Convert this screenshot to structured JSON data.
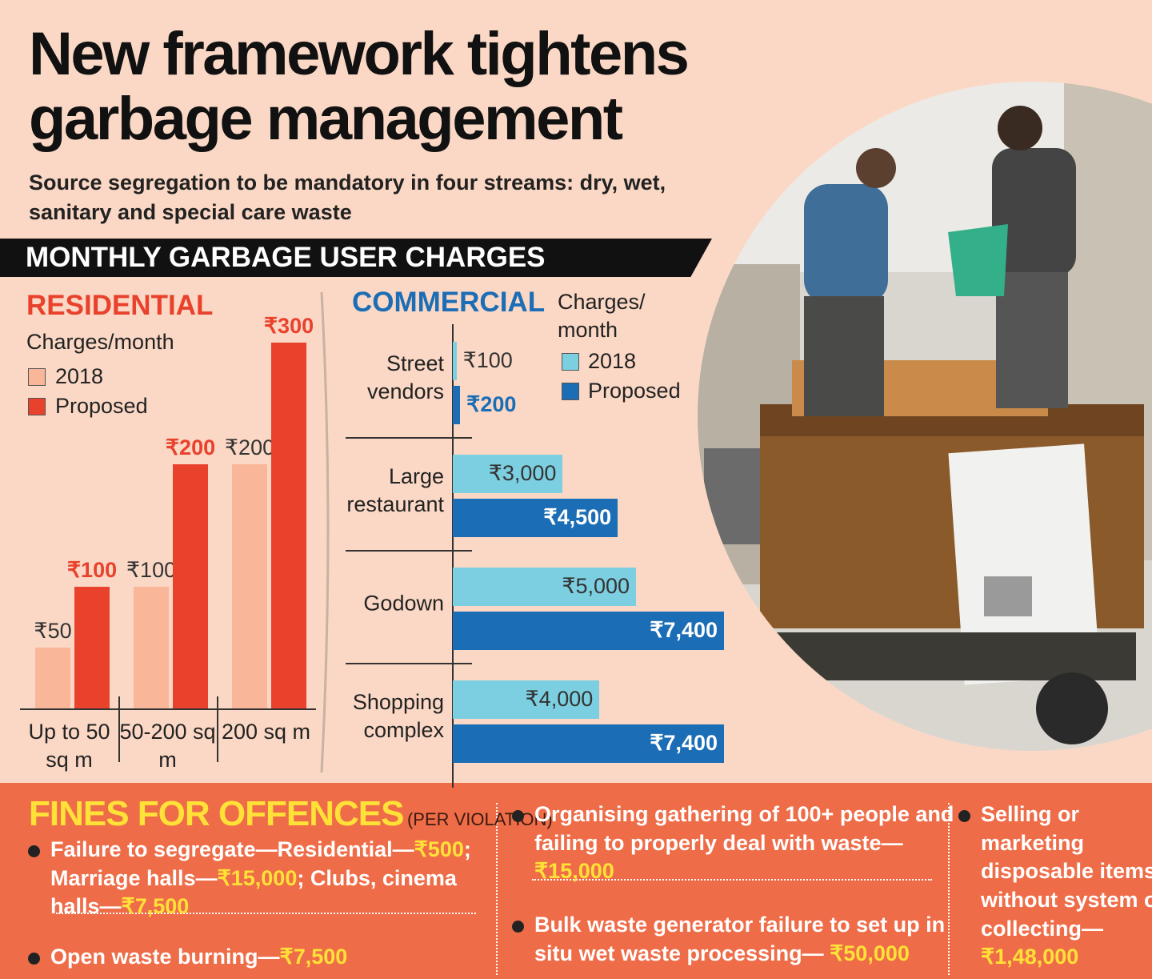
{
  "header": {
    "title": "New framework tightens garbage management",
    "subtitle": "Source segregation to be mandatory in four streams: dry, wet, sanitary and special care waste",
    "section": "MONTHLY GARBAGE USER CHARGES"
  },
  "chart_data": [
    {
      "type": "bar",
      "title": "RESIDENTIAL",
      "subtitle": "Charges/month",
      "categories": [
        "Up to 50 sq m",
        "50-200 sq m",
        "200 sq m"
      ],
      "series": [
        {
          "name": "2018",
          "color": "#f9b699",
          "values": [
            50,
            100,
            200
          ],
          "value_labels": [
            "₹50",
            "₹100",
            "₹200"
          ]
        },
        {
          "name": "Proposed",
          "color": "#e8412c",
          "values": [
            100,
            200,
            300
          ],
          "value_labels": [
            "₹100",
            "₹200",
            "₹300"
          ]
        }
      ]
    },
    {
      "type": "barh",
      "title": "COMMERCIAL",
      "subtitle": "Charges/ month",
      "categories": [
        "Street vendors",
        "Large restaurant",
        "Godown",
        "Shopping complex"
      ],
      "series": [
        {
          "name": "2018",
          "color": "#7ccfe0",
          "values": [
            100,
            3000,
            5000,
            4000
          ],
          "value_labels": [
            "₹100",
            "₹3,000",
            "₹5,000",
            "₹4,000"
          ]
        },
        {
          "name": "Proposed",
          "color": "#1b6db5",
          "values": [
            200,
            4500,
            7400,
            7400
          ],
          "value_labels": [
            "₹200",
            "₹4,500",
            "₹7,400",
            "₹7,400"
          ]
        }
      ]
    }
  ],
  "fines": {
    "title": "FINES FOR OFFENCES",
    "note": "(PER VIOLATION)",
    "items": [
      [
        "Failure to segregate—Residential—",
        "₹500",
        "; Marriage halls—",
        "₹15,000",
        "; Clubs, cinema halls—",
        "₹7,500"
      ],
      [
        "Open waste burning—",
        "₹7,500"
      ],
      [
        "Organising gathering of 100+ people and failing to properly deal with waste— ",
        "₹15,000"
      ],
      [
        "Bulk waste generator failure to set up in situ wet waste processing— ",
        "₹50,000"
      ],
      [
        "Selling or marketing disposable items without system of collecting—",
        "₹1,48,000"
      ]
    ]
  }
}
